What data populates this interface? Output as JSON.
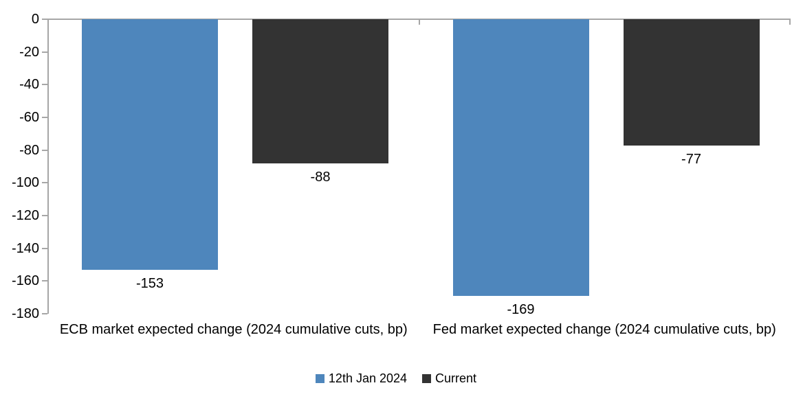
{
  "chart_data": {
    "type": "bar",
    "title": "",
    "categories": [
      "ECB market expected change (2024 cumulative cuts, bp)",
      "Fed market expected change (2024 cumulative cuts, bp)"
    ],
    "series": [
      {
        "name": "12th Jan 2024",
        "color": "#4E86BC",
        "values": [
          -153,
          -169
        ],
        "labels": [
          "-153",
          "-169"
        ]
      },
      {
        "name": "Current",
        "color": "#333333",
        "values": [
          -88,
          -77
        ],
        "labels": [
          "-88",
          "-77"
        ]
      }
    ],
    "ylim": [
      -180,
      0
    ],
    "y_ticks": [
      0,
      -20,
      -40,
      -60,
      -80,
      -100,
      -120,
      -140,
      -160,
      -180
    ],
    "y_tick_labels": [
      "0",
      "-20",
      "-40",
      "-60",
      "-80",
      "-100",
      "-120",
      "-140",
      "-160",
      "-180"
    ],
    "grid": false,
    "legend_position": "bottom",
    "axis_color": "#A6A6A6",
    "text_color": "#000000",
    "background": "#FFFFFF"
  }
}
